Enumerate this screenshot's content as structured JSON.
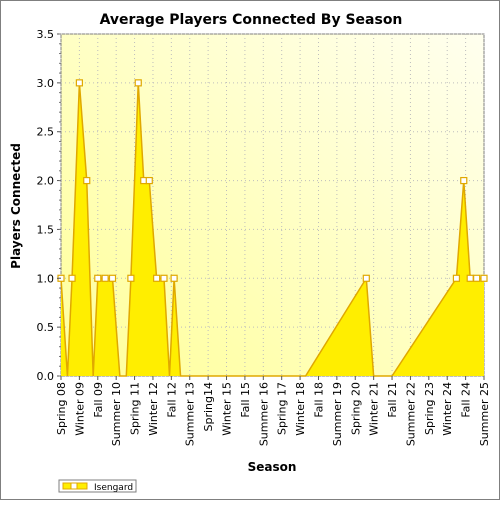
{
  "chart_data": {
    "type": "area",
    "title": "Average Players Connected By Season",
    "xlabel": "Season",
    "ylabel": "Players Connected",
    "ylim": [
      0,
      3.5
    ],
    "yticks": [
      "0.0",
      "0.5",
      "1.0",
      "1.5",
      "2.0",
      "2.5",
      "3.0",
      "3.5"
    ],
    "xtick_labels": [
      "Spring 08",
      "Winter 09",
      "Fall 09",
      "Summer 10",
      "Spring 11",
      "Winter 12",
      "Fall 12",
      "Summer 13",
      "Spring14",
      "Winter 15",
      "Fall 15",
      "Summer 16",
      "Spring 17",
      "Winter 18",
      "Fall 18",
      "Summer 19",
      "Spring 20",
      "Winter 21",
      "Fall 21",
      "Summer 22",
      "Spring 23",
      "Winter 24",
      "Fall 24",
      "Summer 25"
    ],
    "grid": true,
    "legend": "bottom-left",
    "series": [
      {
        "name": "Isengard",
        "color": "#ffee00",
        "line_color": "#e0a800",
        "points": [
          {
            "x": 0.0,
            "y": 1.0,
            "marker": true
          },
          {
            "x": 0.35,
            "y": 0.0,
            "marker": false
          },
          {
            "x": 0.6,
            "y": 1.0,
            "marker": true
          },
          {
            "x": 1.0,
            "y": 3.0,
            "marker": true
          },
          {
            "x": 1.4,
            "y": 2.0,
            "marker": true
          },
          {
            "x": 1.75,
            "y": 0.0,
            "marker": false
          },
          {
            "x": 2.0,
            "y": 1.0,
            "marker": true
          },
          {
            "x": 2.4,
            "y": 1.0,
            "marker": true
          },
          {
            "x": 2.8,
            "y": 1.0,
            "marker": true
          },
          {
            "x": 3.2,
            "y": 0.0,
            "marker": false
          },
          {
            "x": 3.55,
            "y": 0.0,
            "marker": false
          },
          {
            "x": 3.8,
            "y": 1.0,
            "marker": true
          },
          {
            "x": 4.2,
            "y": 3.0,
            "marker": true
          },
          {
            "x": 4.5,
            "y": 2.0,
            "marker": true
          },
          {
            "x": 4.8,
            "y": 2.0,
            "marker": true
          },
          {
            "x": 5.2,
            "y": 1.0,
            "marker": true
          },
          {
            "x": 5.6,
            "y": 1.0,
            "marker": true
          },
          {
            "x": 5.9,
            "y": 0.0,
            "marker": false
          },
          {
            "x": 6.15,
            "y": 1.0,
            "marker": true
          },
          {
            "x": 6.5,
            "y": 0.0,
            "marker": false
          },
          {
            "x": 13.3,
            "y": 0.0,
            "marker": false
          },
          {
            "x": 16.6,
            "y": 1.0,
            "marker": true
          },
          {
            "x": 17.0,
            "y": 0.0,
            "marker": false
          },
          {
            "x": 18.0,
            "y": 0.0,
            "marker": false
          },
          {
            "x": 21.5,
            "y": 1.0,
            "marker": true
          },
          {
            "x": 21.9,
            "y": 2.0,
            "marker": true
          },
          {
            "x": 22.25,
            "y": 1.0,
            "marker": true
          },
          {
            "x": 22.6,
            "y": 1.0,
            "marker": true
          },
          {
            "x": 23.0,
            "y": 1.0,
            "marker": true
          }
        ]
      }
    ]
  }
}
